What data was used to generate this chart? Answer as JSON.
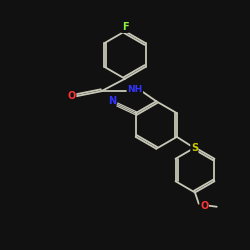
{
  "background_color": "#111111",
  "bond_color": "#c8c8b8",
  "atom_colors": {
    "F": "#90ee40",
    "O": "#ff3333",
    "N": "#3333ff",
    "S": "#cccc00",
    "C": "#c8c8b8"
  },
  "figsize": [
    2.5,
    2.5
  ],
  "dpi": 100
}
